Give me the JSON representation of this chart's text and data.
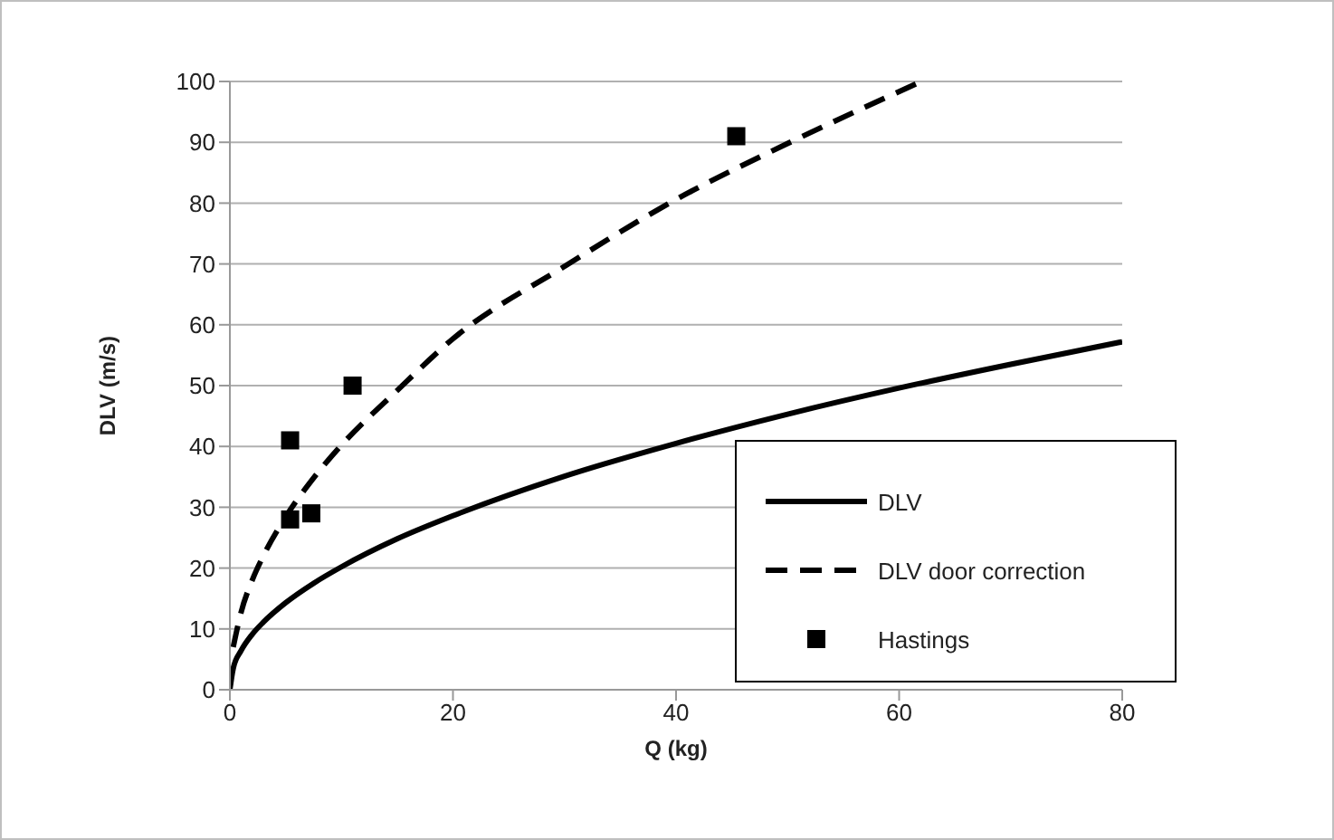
{
  "chart_data": {
    "type": "line",
    "xlabel": "Q (kg)",
    "ylabel": "DLV (m/s)",
    "xlim": [
      0,
      80
    ],
    "xticks": [
      0,
      20,
      40,
      60,
      80
    ],
    "ylim": [
      0,
      100
    ],
    "yticks": [
      0,
      10,
      20,
      30,
      40,
      50,
      60,
      70,
      80,
      90,
      100
    ],
    "grid": "y",
    "legend": "bottom right",
    "series": [
      {
        "name": "DLV",
        "color": "#000000",
        "line_style": "solid",
        "marker": "none",
        "x": [
          0,
          0.3,
          1,
          2,
          3,
          5,
          7.5,
          10,
          15,
          20,
          30,
          40,
          50,
          60,
          70,
          80
        ],
        "values": [
          0,
          3.5,
          6.4,
          9.1,
          11.1,
          14.3,
          17.5,
          20.2,
          24.8,
          28.6,
          35.1,
          40.5,
          45.3,
          49.6,
          53.5,
          57.2
        ]
      },
      {
        "name": "DLV door correction",
        "color": "#000000",
        "line_style": "dashed",
        "marker": "none",
        "x": [
          0.3,
          1,
          2,
          3,
          5,
          7.5,
          10,
          15,
          20,
          30,
          40,
          50,
          62
        ],
        "values": [
          7,
          12.7,
          18,
          22,
          28.4,
          34.8,
          40.2,
          49.2,
          57.7,
          69.6,
          80.6,
          89.8,
          100
        ]
      },
      {
        "name": "Hastings",
        "type": "scatter",
        "color": "#000000",
        "marker": "square",
        "x": [
          5.4,
          5.4,
          7.3,
          11,
          45.4
        ],
        "values": [
          41,
          28,
          29,
          50,
          91
        ]
      }
    ]
  }
}
